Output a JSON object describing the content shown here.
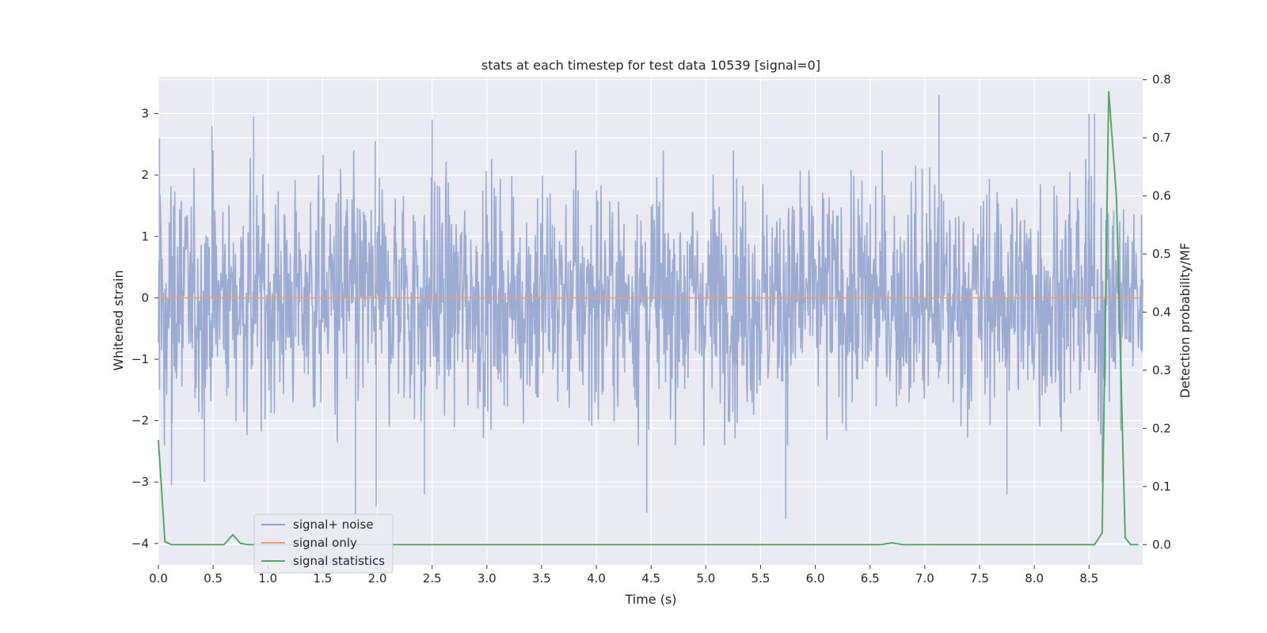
{
  "chart_data": {
    "type": "line",
    "title": "stats at each timestep for test data 10539 [signal=0]",
    "xlabel": "Time (s)",
    "ylabel_left": "Whitened strain",
    "ylabel_right": "Detection probability/MF",
    "xlim": [
      0,
      8.99
    ],
    "ylim_left": [
      -4.35,
      3.6
    ],
    "ylim_right": [
      -0.035,
      0.805
    ],
    "x_ticks": [
      "0.0",
      "0.5",
      "1.0",
      "1.5",
      "2.0",
      "2.5",
      "3.0",
      "3.5",
      "4.0",
      "4.5",
      "5.0",
      "5.5",
      "6.0",
      "6.5",
      "7.0",
      "7.5",
      "8.0",
      "8.5"
    ],
    "x_tick_values": [
      0,
      0.5,
      1,
      1.5,
      2,
      2.5,
      3,
      3.5,
      4,
      4.5,
      5,
      5.5,
      6,
      6.5,
      7,
      7.5,
      8,
      8.5
    ],
    "y_left_ticks": [
      "−4",
      "−3",
      "−2",
      "−1",
      "0",
      "1",
      "2",
      "3"
    ],
    "y_left_tick_values": [
      -4,
      -3,
      -2,
      -1,
      0,
      1,
      2,
      3
    ],
    "y_right_ticks": [
      "0.0",
      "0.1",
      "0.2",
      "0.3",
      "0.4",
      "0.5",
      "0.6",
      "0.7",
      "0.8"
    ],
    "y_right_tick_values": [
      0,
      0.1,
      0.2,
      0.3,
      0.4,
      0.5,
      0.6,
      0.7,
      0.8
    ],
    "grid": true,
    "legend_position": "lower-left",
    "series": [
      {
        "name": "signal+ noise",
        "axis": "left",
        "color": "#8da0cb",
        "description_stats": {
          "typical_range": [
            -2,
            2
          ],
          "max": 3.3,
          "min": -3.65
        },
        "extremes": [
          {
            "x": 0.01,
            "y": 2.6
          },
          {
            "x": 0.12,
            "y": -3.05
          },
          {
            "x": 0.42,
            "y": -3.0
          },
          {
            "x": 0.49,
            "y": 2.8
          },
          {
            "x": 0.87,
            "y": 2.95
          },
          {
            "x": 1.8,
            "y": -3.65
          },
          {
            "x": 1.98,
            "y": 2.55
          },
          {
            "x": 1.99,
            "y": -3.4
          },
          {
            "x": 2.43,
            "y": -3.2
          },
          {
            "x": 2.5,
            "y": 2.9
          },
          {
            "x": 4.46,
            "y": -3.5
          },
          {
            "x": 5.73,
            "y": -3.6
          },
          {
            "x": 7.13,
            "y": 3.3
          },
          {
            "x": 7.75,
            "y": -3.2
          },
          {
            "x": 8.5,
            "y": 3.0
          },
          {
            "x": 8.55,
            "y": 3.0
          },
          {
            "x": 8.62,
            "y": -3.0
          }
        ]
      },
      {
        "name": "signal only",
        "axis": "left",
        "color": "#e8a07a",
        "x": [
          0,
          8.99
        ],
        "y": [
          0,
          0
        ]
      },
      {
        "name": "signal statistics",
        "axis": "right",
        "color": "#55a868",
        "x": [
          0.0,
          0.06,
          0.12,
          0.2,
          0.3,
          0.4,
          0.5,
          0.6,
          0.68,
          0.75,
          0.82,
          0.9,
          1.0,
          2.0,
          3.0,
          4.0,
          5.0,
          5.7,
          6.0,
          6.6,
          6.7,
          6.8,
          7.0,
          7.5,
          8.0,
          8.4,
          8.55,
          8.62,
          8.68,
          8.75,
          8.83,
          8.88,
          8.95
        ],
        "y": [
          0.18,
          0.005,
          0.0,
          0.0,
          0.0,
          0.0,
          0.0,
          0.0,
          0.017,
          0.002,
          0.0,
          0.0,
          0.0,
          0.0,
          0.0,
          0.0,
          0.0,
          0.0,
          0.0,
          0.0,
          0.003,
          0.0,
          0.0,
          0.0,
          0.0,
          0.0,
          0.0,
          0.02,
          0.78,
          0.6,
          0.012,
          0.0,
          0.0
        ]
      }
    ]
  }
}
